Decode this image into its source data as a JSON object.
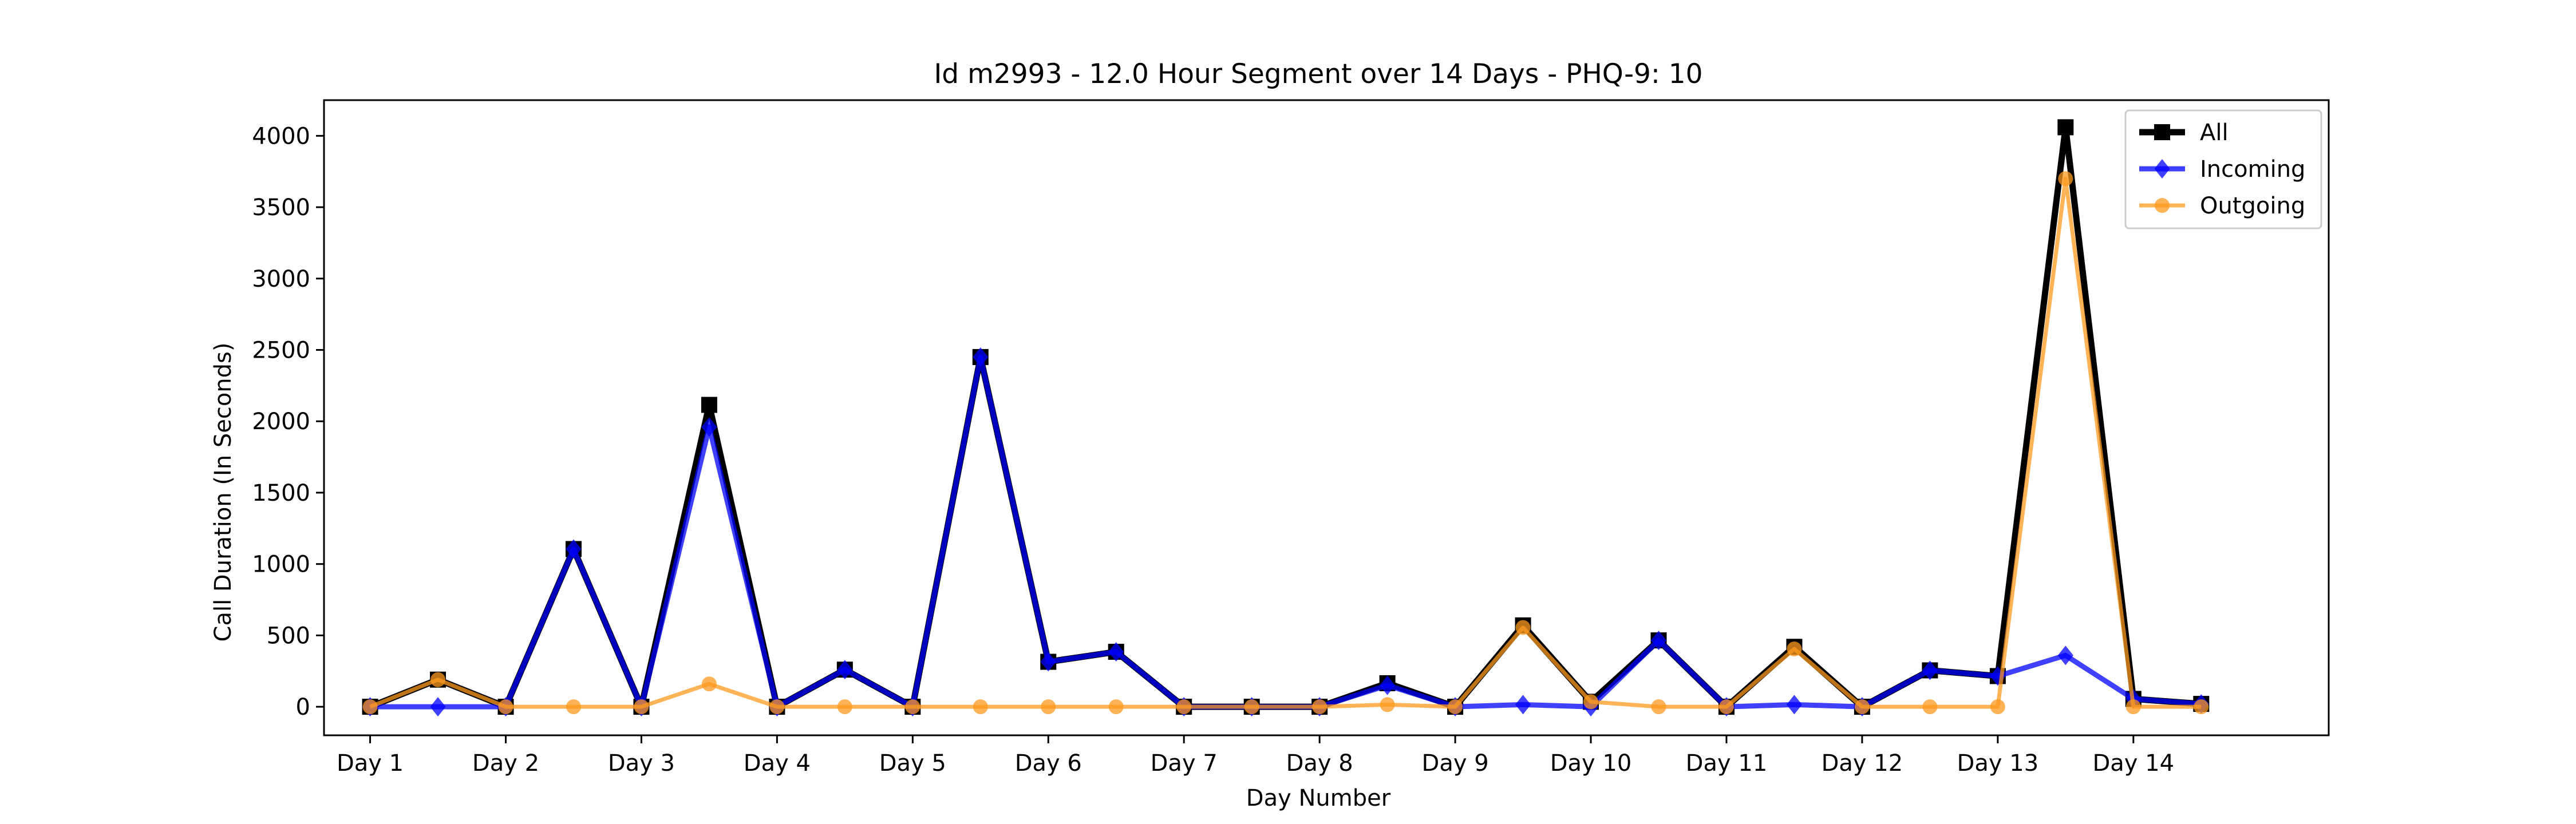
{
  "chart_data": {
    "type": "line",
    "title": "Id m2993 - 12.0 Hour Segment over 14 Days - PHQ-9: 10",
    "xlabel": "Day Number",
    "ylabel": "Call Duration (In Seconds)",
    "x_tick_labels": [
      "Day 1",
      "Day 2",
      "Day 3",
      "Day 4",
      "Day 5",
      "Day 6",
      "Day 7",
      "Day 8",
      "Day 9",
      "Day 10",
      "Day 11",
      "Day 12",
      "Day 13",
      "Day 14"
    ],
    "y_ticks": [
      0,
      500,
      1000,
      1500,
      2000,
      2500,
      3000,
      3500,
      4000
    ],
    "xlim": [
      0.66,
      15.44
    ],
    "ylim": [
      -200,
      4250
    ],
    "grid": false,
    "legend_position": "top-right",
    "x": [
      1,
      1.5,
      2,
      2.5,
      3,
      3.5,
      4,
      4.5,
      5,
      5.5,
      6,
      6.5,
      7,
      7.5,
      8,
      8.5,
      9,
      9.5,
      10,
      10.5,
      11,
      11.5,
      12,
      12.5,
      13,
      13.5,
      14,
      14.5
    ],
    "series": [
      {
        "name": "All",
        "color": "#000000",
        "marker": "square",
        "values": [
          0,
          190,
          0,
          1105,
          0,
          2115,
          0,
          260,
          0,
          2450,
          315,
          385,
          0,
          0,
          0,
          165,
          0,
          570,
          35,
          465,
          0,
          420,
          0,
          255,
          215,
          4060,
          55,
          20
        ]
      },
      {
        "name": "Incoming",
        "color": "#0000ff",
        "marker": "diamond",
        "values": [
          0,
          0,
          0,
          1105,
          0,
          1960,
          0,
          260,
          0,
          2450,
          315,
          385,
          0,
          0,
          0,
          150,
          0,
          15,
          0,
          465,
          0,
          15,
          0,
          255,
          215,
          360,
          55,
          20
        ]
      },
      {
        "name": "Outgoing",
        "color": "#ff9a1f",
        "marker": "circle",
        "values": [
          0,
          190,
          0,
          0,
          0,
          160,
          0,
          0,
          0,
          0,
          0,
          0,
          0,
          0,
          0,
          15,
          0,
          555,
          35,
          0,
          0,
          405,
          0,
          0,
          0,
          3700,
          0,
          0
        ]
      }
    ]
  }
}
